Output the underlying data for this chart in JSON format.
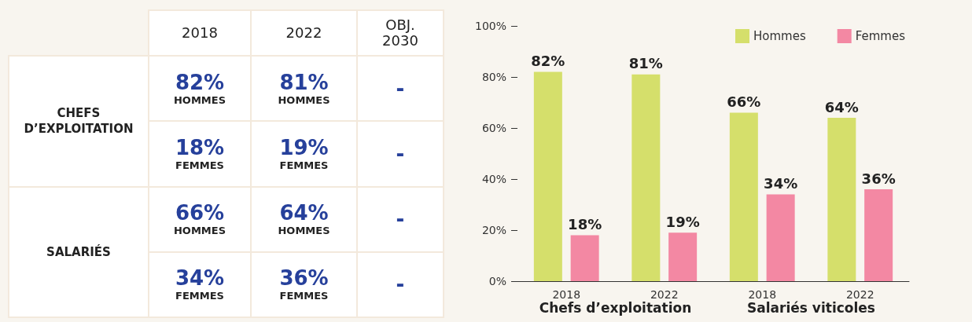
{
  "chart_data": [
    {
      "type": "other",
      "categories": [
        "2018",
        "2022",
        "OBJ. 2030"
      ],
      "y_categories": [
        "CHEFS D’EXPLOITATION",
        null,
        "SALARIÉS",
        null
      ],
      "cell_labels": [
        [
          "82%\nHOMMES",
          "81%\nHOMMES",
          "-"
        ],
        [
          "18%\nFEMMES",
          "19%\nFEMMES",
          "-"
        ],
        [
          "66%\nHOMMES",
          "64%\nHOMMES",
          "-"
        ],
        [
          "34%\nFEMMES",
          "36%\nFEMMES",
          "-"
        ]
      ]
    },
    {
      "type": "bar",
      "categories": [
        "2018",
        "2022",
        "2018",
        "2022"
      ],
      "series": [
        {
          "name": "Hommes",
          "color": "#d5df6b",
          "values": [
            82,
            81,
            66,
            64
          ],
          "value_labels": [
            "82%",
            "81%",
            "66%",
            "64%"
          ]
        },
        {
          "name": "Femmes",
          "color": "#f388a3",
          "values": [
            18,
            19,
            34,
            36
          ],
          "value_labels": [
            "18%",
            "19%",
            "34%",
            "36%"
          ]
        }
      ],
      "ylim": [
        0,
        100
      ],
      "yticks": [
        {
          "value": 0,
          "label": "0%"
        },
        {
          "value": 20,
          "label": "20%"
        },
        {
          "value": 40,
          "label": "40%"
        },
        {
          "value": 60,
          "label": "60%"
        },
        {
          "value": 80,
          "label": "80%"
        },
        {
          "value": 100,
          "label": "100%"
        }
      ],
      "annotations": [
        "Chefs d’exploitation",
        "Salariés viticoles"
      ],
      "grid": false,
      "legend": "top right"
    }
  ]
}
